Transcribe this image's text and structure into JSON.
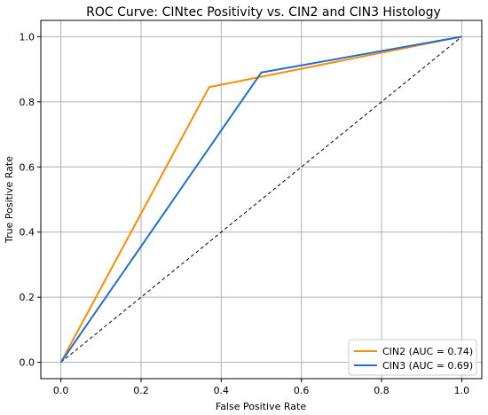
{
  "chart_data": {
    "type": "line",
    "title": "ROC Curve: CINtec Positivity vs. CIN2 and CIN3 Histology",
    "xlabel": "False Positive Rate",
    "ylabel": "True Positive Rate",
    "xlim": [
      -0.05,
      1.05
    ],
    "ylim": [
      -0.05,
      1.05
    ],
    "xticks": [
      "0.0",
      "0.2",
      "0.4",
      "0.6",
      "0.8",
      "1.0"
    ],
    "yticks": [
      "0.0",
      "0.2",
      "0.4",
      "0.6",
      "0.8",
      "1.0"
    ],
    "grid": true,
    "legend_position": "lower-right",
    "series": [
      {
        "name": "CIN2 (AUC = 0.74)",
        "color": "#ff8c00",
        "x": [
          0.0,
          0.37,
          1.0
        ],
        "y": [
          0.0,
          0.845,
          1.0
        ]
      },
      {
        "name": "CIN3 (AUC = 0.69)",
        "color": "#1f6fd1",
        "x": [
          0.0,
          0.5,
          1.0
        ],
        "y": [
          0.0,
          0.89,
          1.0
        ]
      }
    ],
    "reference_line": {
      "x": [
        0.0,
        1.0
      ],
      "y": [
        0.0,
        1.0
      ],
      "color": "#000000",
      "style": "dashed"
    }
  }
}
